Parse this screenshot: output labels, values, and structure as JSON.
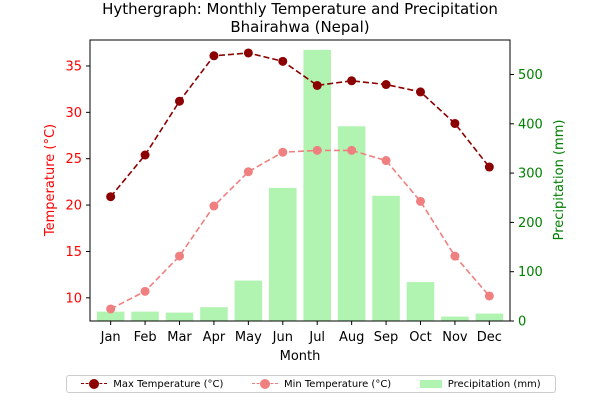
{
  "chart_data": {
    "type": "line",
    "title": "Hythergraph: Monthly Temperature and Precipitation",
    "subtitle": "Bhairahwa (Nepal)",
    "xlabel": "Month",
    "ylabel_left": "Temperature (°C)",
    "ylabel_right": "Precipitation (mm)",
    "categories": [
      "Jan",
      "Feb",
      "Mar",
      "Apr",
      "May",
      "Jun",
      "Jul",
      "Aug",
      "Sep",
      "Oct",
      "Nov",
      "Dec"
    ],
    "ylim_left": [
      7.5,
      37.8
    ],
    "ylim_right": [
      0,
      570
    ],
    "yticks_left": [
      "10",
      "15",
      "20",
      "25",
      "30",
      "35"
    ],
    "yticks_right": [
      "0",
      "100",
      "200",
      "300",
      "400",
      "500"
    ],
    "series": [
      {
        "name": "Max Temperature (°C)",
        "axis": "left",
        "style": "dashed-line-markers",
        "color": "#8b0000",
        "values": [
          20.9,
          25.4,
          31.2,
          36.1,
          36.4,
          35.5,
          32.9,
          33.4,
          33.0,
          32.2,
          28.8,
          24.1
        ]
      },
      {
        "name": "Min Temperature (°C)",
        "axis": "left",
        "style": "dashed-line-markers",
        "color": "#f08080",
        "values": [
          8.8,
          10.7,
          14.5,
          19.9,
          23.6,
          25.7,
          25.9,
          25.9,
          24.8,
          20.4,
          14.5,
          10.2
        ]
      },
      {
        "name": "Precipitation (mm)",
        "axis": "right",
        "style": "bar",
        "color": "#90ee90",
        "values": [
          19,
          19,
          17,
          28,
          82,
          270,
          550,
          395,
          254,
          79,
          9,
          15
        ]
      }
    ],
    "legend_position": "bottom-center",
    "grid": false,
    "left_axis_color": "#ff0000",
    "right_axis_color": "#008000"
  }
}
